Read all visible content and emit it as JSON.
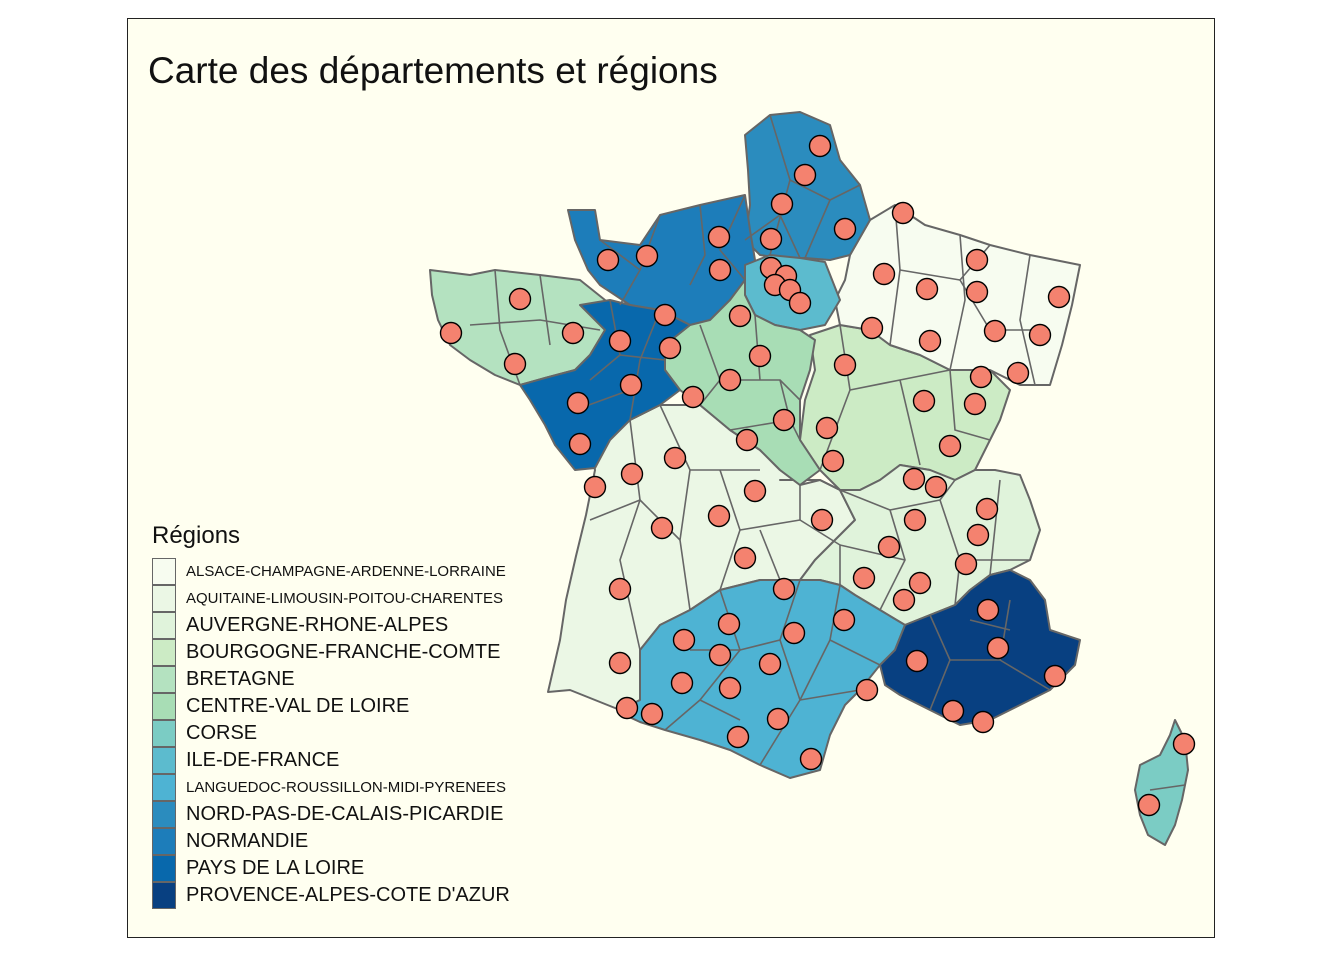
{
  "title": "Carte des départements et régions",
  "legend": {
    "title": "Régions",
    "items": [
      {
        "label": "ALSACE-CHAMPAGNE-ARDENNE-LORRAINE",
        "color": "#f7fcf0",
        "small": true
      },
      {
        "label": "AQUITAINE-LIMOUSIN-POITOU-CHARENTES",
        "color": "#ebf7e5",
        "small": true
      },
      {
        "label": "AUVERGNE-RHONE-ALPES",
        "color": "#e0f3db",
        "small": false
      },
      {
        "label": "BOURGOGNE-FRANCHE-COMTE",
        "color": "#ccebc5",
        "small": false
      },
      {
        "label": "BRETAGNE",
        "color": "#b4e2c0",
        "small": false
      },
      {
        "label": "CENTRE-VAL DE LOIRE",
        "color": "#a8ddb5",
        "small": false
      },
      {
        "label": "CORSE",
        "color": "#7bccc4",
        "small": false
      },
      {
        "label": "ILE-DE-FRANCE",
        "color": "#5cbbce",
        "small": false
      },
      {
        "label": "LANGUEDOC-ROUSSILLON-MIDI-PYRENEES",
        "color": "#4eb3d3",
        "small": true
      },
      {
        "label": "NORD-PAS-DE-CALAIS-PICARDIE",
        "color": "#2b8cbe",
        "small": false
      },
      {
        "label": "NORMANDIE",
        "color": "#1d7dba",
        "small": false
      },
      {
        "label": "PAYS DE LA LOIRE",
        "color": "#0868ac",
        "small": false
      },
      {
        "label": "PROVENCE-ALPES-COTE D'AZUR",
        "color": "#084081",
        "small": false
      }
    ]
  },
  "style": {
    "panel_background": "#fffff0",
    "border_color": "#666666",
    "point_fill": "#f4826f",
    "point_stroke": "#000000"
  }
}
